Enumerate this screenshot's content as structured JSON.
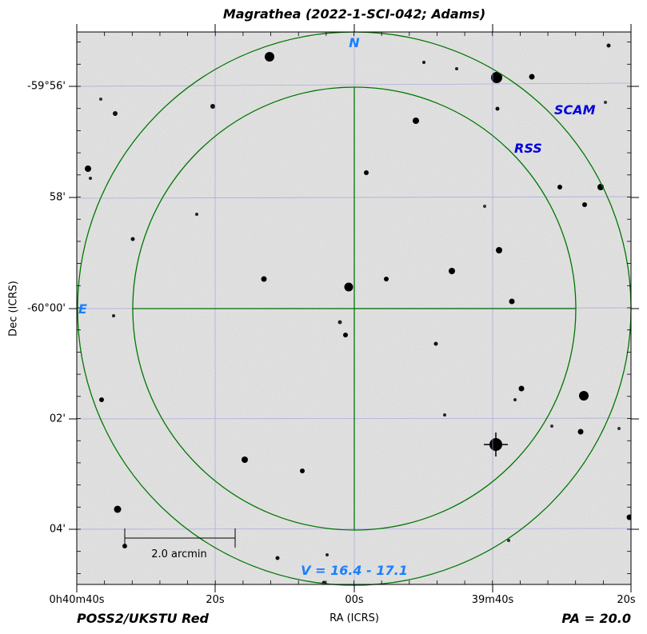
{
  "title": "Magrathea (2022-1-SCI-042; Adams)",
  "y_axis_label": "Dec (ICRS)",
  "x_axis_label": "RA (ICRS)",
  "y_ticks": [
    "-59°56'",
    "58'",
    "-60°00'",
    "02'",
    "04'"
  ],
  "x_ticks": [
    "0h40m40s",
    "20s",
    "00s",
    "39m40s",
    "20s"
  ],
  "labels": {
    "north": "N",
    "east": "E",
    "scam": "SCAM",
    "rss": "RSS",
    "magnitude": "V = 16.4 - 17.1",
    "scale_bar": "2.0 arcmin"
  },
  "survey": "POSS2/UKSTU Red",
  "position_angle": "PA = 20.0",
  "colors": {
    "sky_background": "#c8c8c8",
    "circle": "#007700",
    "grid": "#a0a0e0",
    "label_blue": "#1a7fff",
    "instrument_label": "#0000dd"
  }
}
